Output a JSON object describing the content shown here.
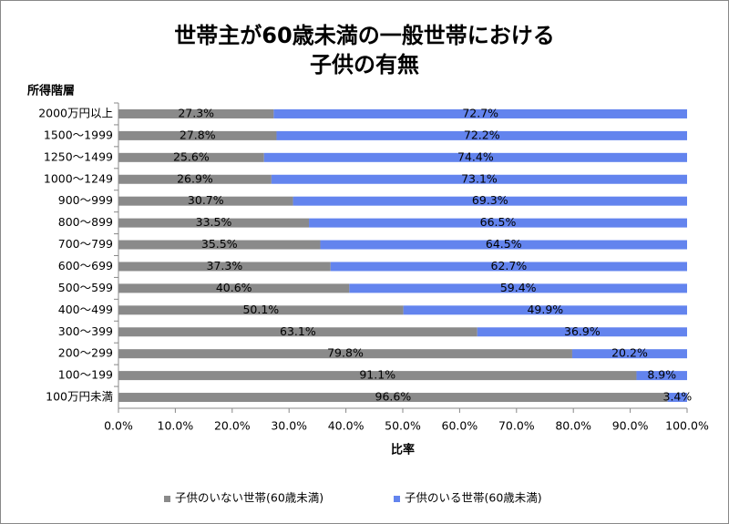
{
  "chart_data": {
    "type": "stacked-barh",
    "title": [
      "世帯主が60歳未満の一般世帯における",
      "子供の有無"
    ],
    "y_label": "所得階層",
    "x_label": "比率",
    "categories": [
      "2000万円以上",
      "1500～1999",
      "1250～1499",
      "1000～1249",
      "900～999",
      "800～899",
      "700～799",
      "600～699",
      "500～599",
      "400～499",
      "300～399",
      "200～299",
      "100～199",
      "100万円未満"
    ],
    "series": [
      {
        "name": "子供のいない世帯(60歳未満)",
        "color": "#8a8a8a",
        "values": [
          27.3,
          27.8,
          25.6,
          26.9,
          30.7,
          33.5,
          35.5,
          37.3,
          40.6,
          50.1,
          63.1,
          79.8,
          91.1,
          96.6
        ],
        "value_labels": [
          "27.3%",
          "27.8%",
          "25.6%",
          "26.9%",
          "30.7%",
          "33.5%",
          "35.5%",
          "37.3%",
          "40.6%",
          "50.1%",
          "63.1%",
          "79.8%",
          "91.1%",
          "96.6%"
        ]
      },
      {
        "name": "子供のいる世帯(60歳未満)",
        "color": "#6384ee",
        "values": [
          72.7,
          72.2,
          74.4,
          73.1,
          69.3,
          66.5,
          64.5,
          62.7,
          59.4,
          49.9,
          36.9,
          20.2,
          8.9,
          3.4
        ],
        "value_labels": [
          "72.7%",
          "72.2%",
          "74.4%",
          "73.1%",
          "69.3%",
          "66.5%",
          "64.5%",
          "62.7%",
          "59.4%",
          "49.9%",
          "36.9%",
          "20.2%",
          "8.9%",
          "3.4%"
        ]
      }
    ],
    "xlim": [
      0,
      100
    ],
    "xticks": [
      {
        "value": 0,
        "label": "0.0%"
      },
      {
        "value": 10,
        "label": "10.0%"
      },
      {
        "value": 20,
        "label": "20.0%"
      },
      {
        "value": 30,
        "label": "30.0%"
      },
      {
        "value": 40,
        "label": "40.0%"
      },
      {
        "value": 50,
        "label": "50.0%"
      },
      {
        "value": 60,
        "label": "60.0%"
      },
      {
        "value": 70,
        "label": "70.0%"
      },
      {
        "value": 80,
        "label": "80.0%"
      },
      {
        "value": 90,
        "label": "90.0%"
      },
      {
        "value": 100,
        "label": "100.0%"
      }
    ],
    "legend": "bottom"
  }
}
